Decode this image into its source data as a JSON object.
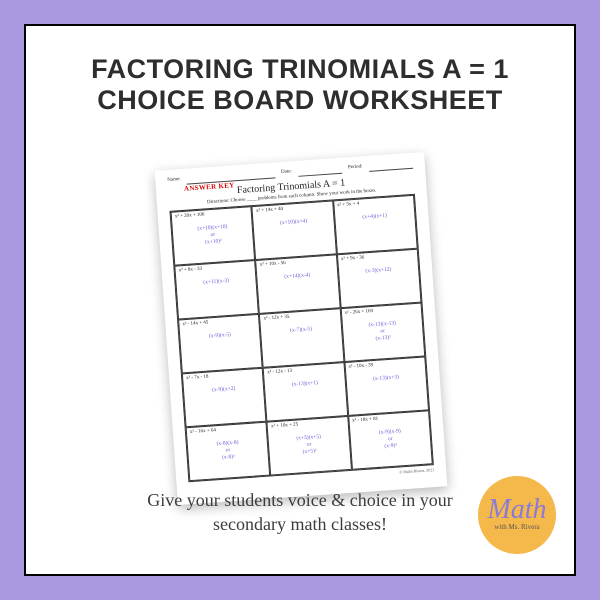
{
  "title_line1": "FACTORING TRINOMIALS A = 1",
  "title_line2": "CHOICE BOARD WORKSHEET",
  "subtitle_line1": "Give your students voice & choice in your",
  "subtitle_line2": "secondary math classes!",
  "worksheet": {
    "name_label": "Name:",
    "date_label": "Date:",
    "period_label": "Period:",
    "answer_key": "ANSWER KEY",
    "title": "Factoring Trinomials A = 1",
    "directions": "Directions: Choose ____ problems from each column. Show your work in the boxes.",
    "copyright": "© Malia Rivera, 2021",
    "cells": [
      {
        "prob": "x² + 20x + 100",
        "ans": "(x+10)(x+10)\nor\n(x+10)²"
      },
      {
        "prob": "x² + 14x + 40",
        "ans": "(x+10)(x+4)"
      },
      {
        "prob": "x² + 5x + 4",
        "ans": "(x+4)(x+1)"
      },
      {
        "prob": "x² + 8x - 33",
        "ans": "(x+11)(x-3)"
      },
      {
        "prob": "x² + 10x - 56",
        "ans": "(x+14)(x-4)"
      },
      {
        "prob": "x² + 9x - 36",
        "ans": "(x-3)(x+12)"
      },
      {
        "prob": "x² - 14x + 45",
        "ans": "(x-9)(x-5)"
      },
      {
        "prob": "x² - 12x + 35",
        "ans": "(x-7)(x-5)"
      },
      {
        "prob": "x² - 26x + 169",
        "ans": "(x-13)(x-13)\nor\n(x-13)²"
      },
      {
        "prob": "x² - 7x - 18",
        "ans": "(x-9)(x+2)"
      },
      {
        "prob": "x² - 12x - 13",
        "ans": "(x-13)(x+1)"
      },
      {
        "prob": "x² - 10x - 39",
        "ans": "(x-13)(x+3)"
      },
      {
        "prob": "x² - 16x + 64",
        "ans": "(x-8)(x-8)\nor\n(x-8)²"
      },
      {
        "prob": "x² + 10x + 25",
        "ans": "(x+5)(x+5)\nor\n(x+5)²"
      },
      {
        "prob": "x² - 18x + 81",
        "ans": "(x-9)(x-9)\nor\n(x-9)²"
      }
    ]
  },
  "logo": {
    "main": "Math",
    "sub": "with Ms. Rivera"
  }
}
